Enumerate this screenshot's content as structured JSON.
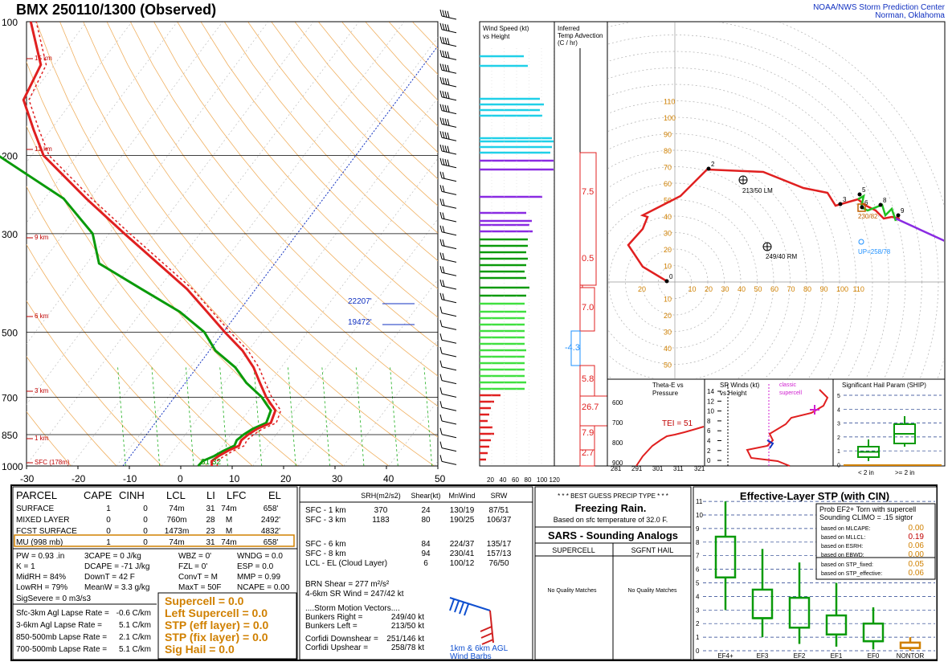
{
  "header": {
    "title": "BMX   250110/1300  (Observed)",
    "credit1": "NOAA/NWS Storm Prediction Center",
    "credit2": "Norman, Oklahoma"
  },
  "chart_data": [
    {
      "type": "line",
      "name": "skewt",
      "pressure_labels": [
        "100",
        "200",
        "300",
        "500",
        "700",
        "850",
        "1000"
      ],
      "pressure_levels": [
        100,
        200,
        300,
        500,
        700,
        850,
        1000
      ],
      "height_labels": [
        "15 km",
        "12 km",
        "9 km",
        "6 km",
        "3 km",
        "1 km",
        "SFC (178m)"
      ],
      "temp_ticks": [
        "-30",
        "-20",
        "-10",
        "0",
        "10",
        "20",
        "30",
        "40",
        "50"
      ],
      "temp_values": [
        -30,
        -20,
        -10,
        0,
        10,
        20,
        30,
        40,
        50
      ],
      "sfc_label": "31  32",
      "level_annotations": [
        {
          "label": "22207'"
        },
        {
          "label": "19472'"
        }
      ],
      "temperature": [
        [
          1000,
          1
        ],
        [
          975,
          1
        ],
        [
          950,
          2.5
        ],
        [
          925,
          4.5
        ],
        [
          900,
          7
        ],
        [
          875,
          7.5
        ],
        [
          850,
          9
        ],
        [
          825,
          11
        ],
        [
          800,
          14
        ],
        [
          775,
          14.5
        ],
        [
          750,
          15
        ],
        [
          725,
          14
        ],
        [
          700,
          13
        ],
        [
          650,
          10
        ],
        [
          600,
          7
        ],
        [
          550,
          3
        ],
        [
          500,
          -2.5
        ],
        [
          450,
          -8
        ],
        [
          400,
          -14
        ],
        [
          350,
          -22
        ],
        [
          300,
          -31
        ],
        [
          250,
          -41
        ],
        [
          200,
          -52
        ],
        [
          175,
          -55
        ],
        [
          150,
          -58
        ],
        [
          125,
          -55
        ],
        [
          100,
          -58
        ]
      ],
      "dewpoint": [
        [
          1000,
          -2
        ],
        [
          975,
          -1
        ],
        [
          950,
          1.5
        ],
        [
          925,
          3.5
        ],
        [
          900,
          6
        ],
        [
          875,
          6.5
        ],
        [
          850,
          8
        ],
        [
          825,
          10
        ],
        [
          800,
          13
        ],
        [
          775,
          13.5
        ],
        [
          750,
          14
        ],
        [
          725,
          13
        ],
        [
          700,
          12
        ],
        [
          650,
          7
        ],
        [
          600,
          3
        ],
        [
          550,
          -3
        ],
        [
          500,
          -7
        ],
        [
          450,
          -14
        ],
        [
          400,
          -24
        ],
        [
          350,
          -35
        ],
        [
          300,
          -38
        ],
        [
          250,
          -46
        ],
        [
          200,
          -62
        ],
        [
          175,
          -64
        ],
        [
          150,
          -65
        ],
        [
          125,
          -65
        ],
        [
          100,
          -68
        ]
      ]
    },
    {
      "type": "bar",
      "name": "wind-speed-profile",
      "title": "Wind Speed (kt) vs Height",
      "ticks": [
        "20",
        "40",
        "60",
        "80",
        "100",
        "120"
      ]
    },
    {
      "type": "bar",
      "name": "temp-advection",
      "title": "Inferred Temp Advection (C / hr)",
      "values": [
        "7.5",
        "0.5",
        "7.0",
        "-4.3",
        "5.8",
        "26.7",
        "7.9",
        "2.7"
      ]
    },
    {
      "type": "line",
      "name": "hodograph",
      "ring_labels": [
        "10",
        "20",
        "30",
        "40",
        "50",
        "60",
        "70",
        "80",
        "90",
        "100",
        "110"
      ],
      "points_labels": [
        "0",
        "2",
        "3",
        "5",
        "6",
        "8",
        "9"
      ],
      "storm_labels": {
        "lm": "213/50 LM",
        "rm": "249/40 RM",
        "up": "UP=258/78",
        "mean": "230/82"
      }
    },
    {
      "type": "line",
      "name": "theta-e",
      "title": "Theta-E vs Pressure",
      "x_ticks": [
        "281",
        "291",
        "301",
        "311",
        "321"
      ],
      "y_ticks": [
        "600",
        "700",
        "800",
        "900"
      ],
      "tei": "TEI = 51"
    },
    {
      "type": "line",
      "name": "sr-winds",
      "title": "SR Winds (kt) vs Height",
      "y_ticks": [
        "14",
        "12",
        "10",
        "8",
        "6",
        "4",
        "2",
        "0"
      ],
      "annotation": "classic supercell"
    },
    {
      "type": "bar",
      "name": "ship",
      "title": "Significant Hail Param (SHIP)",
      "y_ticks": [
        "5",
        "4",
        "3",
        "2",
        "1",
        "0"
      ],
      "x_labels": [
        "< 2 in",
        ">= 2 in"
      ]
    },
    {
      "type": "bar",
      "name": "effective-stp",
      "title": "Effective-Layer STP (with CIN)",
      "categories": [
        "EF4+",
        "EF3",
        "EF2",
        "EF1",
        "EF0",
        "NONTOR"
      ],
      "y_ticks": [
        "11",
        "10",
        "9",
        "8",
        "7",
        "6",
        "5",
        "4",
        "3",
        "2",
        "1",
        "0"
      ],
      "box": [
        [
          3,
          5.4,
          8.4,
          11
        ],
        [
          1,
          2.4,
          4.5,
          7.5
        ],
        [
          0.5,
          1.7,
          3.9,
          6.5
        ],
        [
          0.3,
          1.2,
          2.6,
          5
        ],
        [
          0.1,
          0.7,
          2,
          3.2
        ],
        [
          0,
          0.2,
          0.6,
          1
        ]
      ]
    }
  ],
  "parcel": {
    "headers": [
      "PARCEL",
      "CAPE",
      "CINH",
      "LCL",
      "LI",
      "LFC",
      "EL"
    ],
    "rows": [
      [
        "SURFACE",
        "1",
        "0",
        "74m",
        "31",
        "74m",
        "658'"
      ],
      [
        "MIXED LAYER",
        "0",
        "0",
        "760m",
        "28",
        "M",
        "2492'"
      ],
      [
        "FCST SURFACE",
        "0",
        "0",
        "1473m",
        "23",
        "M",
        "4832'"
      ],
      [
        "MU  (998 mb)",
        "1",
        "0",
        "74m",
        "31",
        "74m",
        "658'"
      ]
    ]
  },
  "indices": [
    [
      "PW = 0.93 .in",
      "3CAPE = 0 J/kg",
      "WBZ = 0'",
      "WNDG = 0.0"
    ],
    [
      "K = 1",
      "DCAPE = -71 J/kg",
      "FZL = 0'",
      "ESP = 0.0"
    ],
    [
      "MidRH = 84%",
      "DownT = 42 F",
      "ConvT = M",
      "MMP = 0.99"
    ],
    [
      "LowRH = 79%",
      "MeanW = 3.3 g/kg",
      "MaxT = 50F",
      "NCAPE = 0.00"
    ]
  ],
  "sig_severe": "SigSevere = 0 m3/s3",
  "lapse": [
    [
      "Sfc-3km Agl Lapse Rate =",
      "-0.6 C/km"
    ],
    [
      "3-6km Agl Lapse Rate =",
      "5.1 C/km"
    ],
    [
      "850-500mb Lapse Rate =",
      "2.1 C/km"
    ],
    [
      "700-500mb Lapse Rate =",
      "5.1 C/km"
    ]
  ],
  "composite": [
    "Supercell = 0.0",
    "Left Supercell = 0.0",
    "STP (eff layer) = 0.0",
    "STP (fix layer) = 0.0",
    "Sig Hail = 0.0"
  ],
  "kinematics": {
    "headers": [
      "SRH(m2/s2)",
      "Shear(kt)",
      "MnWind",
      "SRW"
    ],
    "rows": [
      [
        "SFC - 1 km",
        "370",
        "24",
        "130/19",
        "87/51"
      ],
      [
        "SFC - 3 km",
        "1183",
        "80",
        "190/25",
        "106/37"
      ],
      [
        "SFC - 6 km",
        "",
        "84",
        "224/37",
        "135/17"
      ],
      [
        "SFC - 8 km",
        "",
        "94",
        "230/41",
        "157/13"
      ],
      [
        "LCL - EL (Cloud Layer)",
        "",
        "6",
        "100/12",
        "76/50"
      ]
    ],
    "brn": "BRN Shear =  277 m²/s²",
    "srwind": "4-6km SR Wind =        247/42 kt",
    "motion_title": "....Storm Motion Vectors....",
    "motion": [
      [
        "Bunkers Right =",
        "249/40 kt"
      ],
      [
        "Bunkers Left =",
        "213/50 kt"
      ]
    ],
    "corfidi": [
      [
        "Corfidi Downshear =",
        "251/146 kt"
      ],
      [
        "Corfidi Upshear =",
        "258/78 kt"
      ]
    ],
    "barb_label1": "1km & 6km AGL",
    "barb_label2": "Wind Barbs"
  },
  "precip": {
    "title": "* * * BEST GUESS PRECIP TYPE * * *",
    "type": "Freezing Rain.",
    "note": "Based on sfc temperature of 32.0 F."
  },
  "sars": {
    "title": "SARS - Sounding Analogs",
    "col1": "SUPERCELL",
    "col2": "SGFNT HAIL",
    "match1": "No Quality Matches",
    "match2": "No Quality Matches"
  },
  "stp_box": {
    "line1": "Prob EF2+ Torn with supercell",
    "line2": "Sounding CLIMO = .15 sigtor",
    "rows": [
      [
        "based on MLCAPE:",
        "0.00"
      ],
      [
        "based on MLLCL:",
        "0.19"
      ],
      [
        "based on ESRH:",
        "0.06"
      ],
      [
        "based on EBWD:",
        "0.00"
      ],
      [
        "based on STP_fixed:",
        "0.05"
      ],
      [
        "based on STP_effective:",
        "0.06"
      ]
    ]
  },
  "colors": {
    "temp": "#e02020",
    "dew": "#0a9a0a",
    "blue": "#1030c0",
    "orange": "#d08000",
    "cyan": "#20d0e8",
    "purple": "#8a2be2"
  }
}
